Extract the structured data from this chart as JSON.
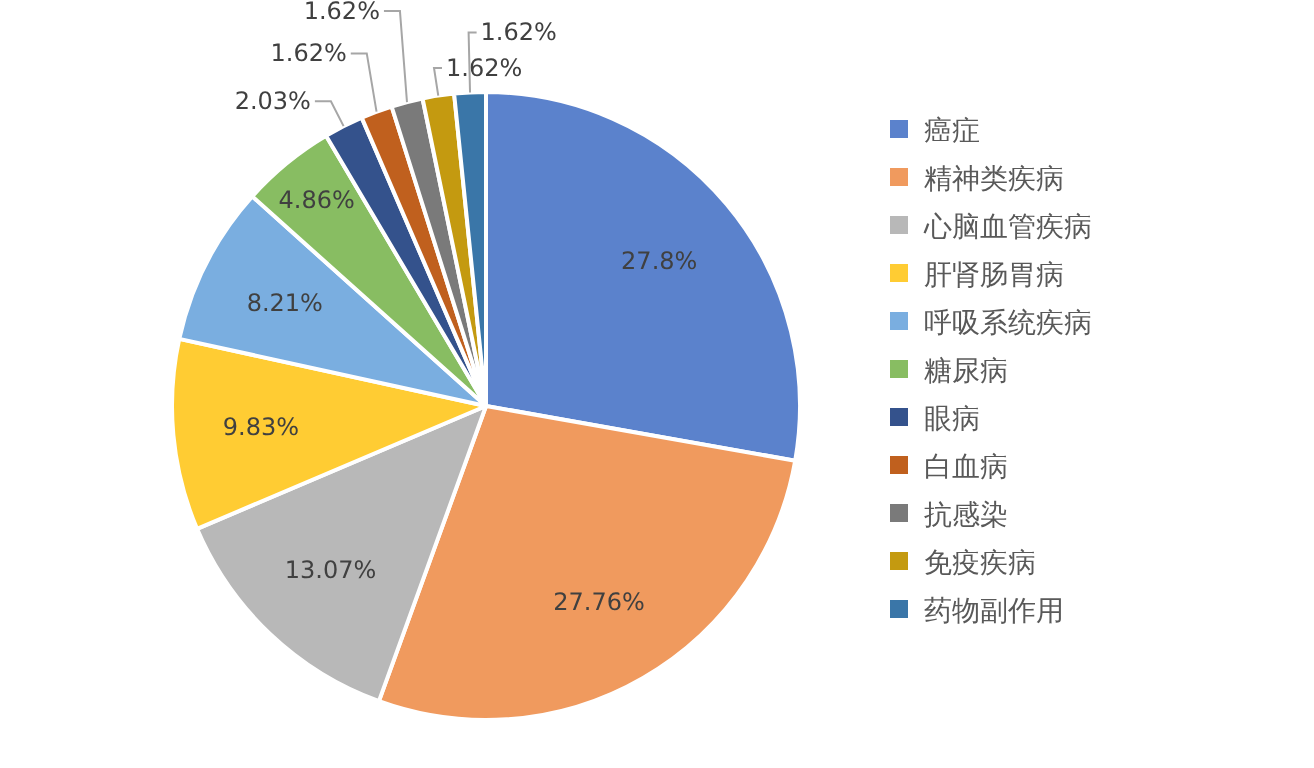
{
  "chart_data": {
    "type": "pie",
    "categories": [
      "癌症",
      "精神类疾病",
      "心脑血管疾病",
      "肝肾肠胃病",
      "呼吸系统疾病",
      "糖尿病",
      "眼病",
      "白血病",
      "抗感染",
      "免疫疾病",
      "药物副作用"
    ],
    "values": [
      27.8,
      27.76,
      13.07,
      9.83,
      8.21,
      4.86,
      2.03,
      1.62,
      1.62,
      1.62,
      1.62
    ],
    "colors": [
      "#5b82cc",
      "#f09a5e",
      "#b8b8b8",
      "#ffcc33",
      "#7aaee0",
      "#88bd62",
      "#34528c",
      "#c0601e",
      "#7a7a7a",
      "#c49a10",
      "#3a76a8"
    ],
    "value_labels": [
      "27.8%",
      "27.76%",
      "13.07%",
      "9.83%",
      "8.21%",
      "4.86%",
      "2.03%",
      "1.62%",
      "1.62%",
      "1.62%",
      "1.62%"
    ],
    "legend": "right"
  }
}
